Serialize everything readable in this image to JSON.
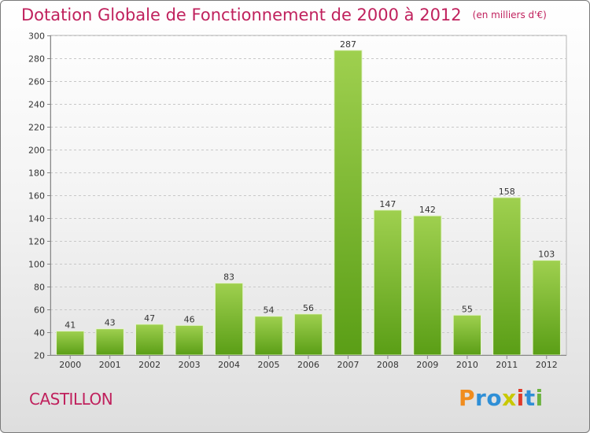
{
  "header": {
    "title": "Dotation Globale de Fonctionnement de 2000 à 2012",
    "unit": "(en milliers d'€)"
  },
  "footer": {
    "commune": "CASTILLON",
    "logo_letters": [
      "P",
      "r",
      "o",
      "x",
      "i",
      "t",
      "i"
    ],
    "logo_colors": [
      "#f08c1e",
      "#2f8fd6",
      "#2f8fd6",
      "#c8c800",
      "#e03a2a",
      "#2f8fd6",
      "#6cb33f"
    ]
  },
  "chart_data": {
    "type": "bar",
    "title": "Dotation Globale de Fonctionnement de 2000 à 2012",
    "subtitle": "(en milliers d'€)",
    "xlabel": "",
    "ylabel": "",
    "categories": [
      "2000",
      "2001",
      "2002",
      "2003",
      "2004",
      "2005",
      "2006",
      "2007",
      "2008",
      "2009",
      "2010",
      "2011",
      "2012"
    ],
    "values": [
      41,
      43,
      47,
      46,
      83,
      54,
      56,
      287,
      147,
      142,
      55,
      158,
      103
    ],
    "ylim": [
      20,
      300
    ],
    "yticks": [
      20,
      40,
      60,
      80,
      100,
      120,
      140,
      160,
      180,
      200,
      220,
      240,
      260,
      280,
      300
    ],
    "grid": true,
    "bar_color_top": "#9fd04f",
    "bar_color_bottom": "#5a9e16"
  }
}
